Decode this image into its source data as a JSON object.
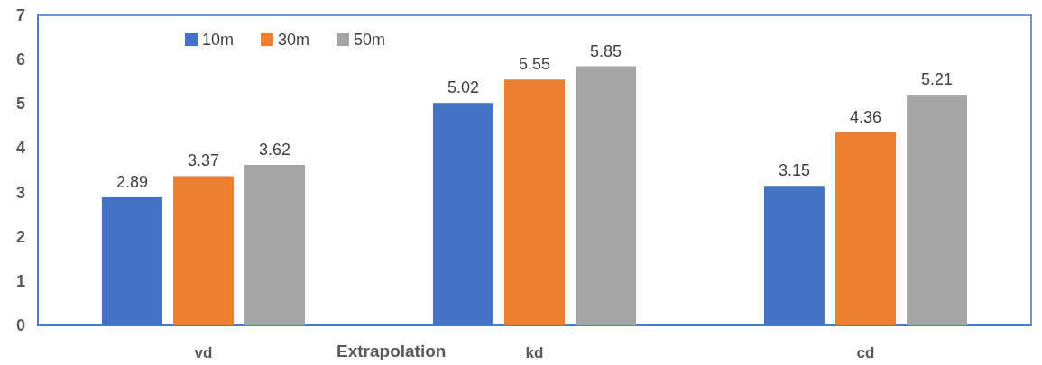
{
  "chart_data": {
    "type": "bar",
    "xlabel": "Extrapolation",
    "categories": [
      "vd",
      "kd",
      "cd"
    ],
    "series": [
      {
        "name": "10m",
        "color": "#4472c4",
        "values": [
          2.89,
          5.02,
          3.15
        ]
      },
      {
        "name": "30m",
        "color": "#ed7d31",
        "values": [
          3.37,
          5.55,
          4.36
        ]
      },
      {
        "name": "50m",
        "color": "#a5a5a5",
        "values": [
          3.62,
          5.85,
          5.21
        ]
      }
    ],
    "ylim": [
      0,
      7
    ],
    "yticks": [
      0,
      1,
      2,
      3,
      4,
      5,
      6,
      7
    ],
    "grid": false,
    "legend": "top left",
    "data_labels": true
  }
}
